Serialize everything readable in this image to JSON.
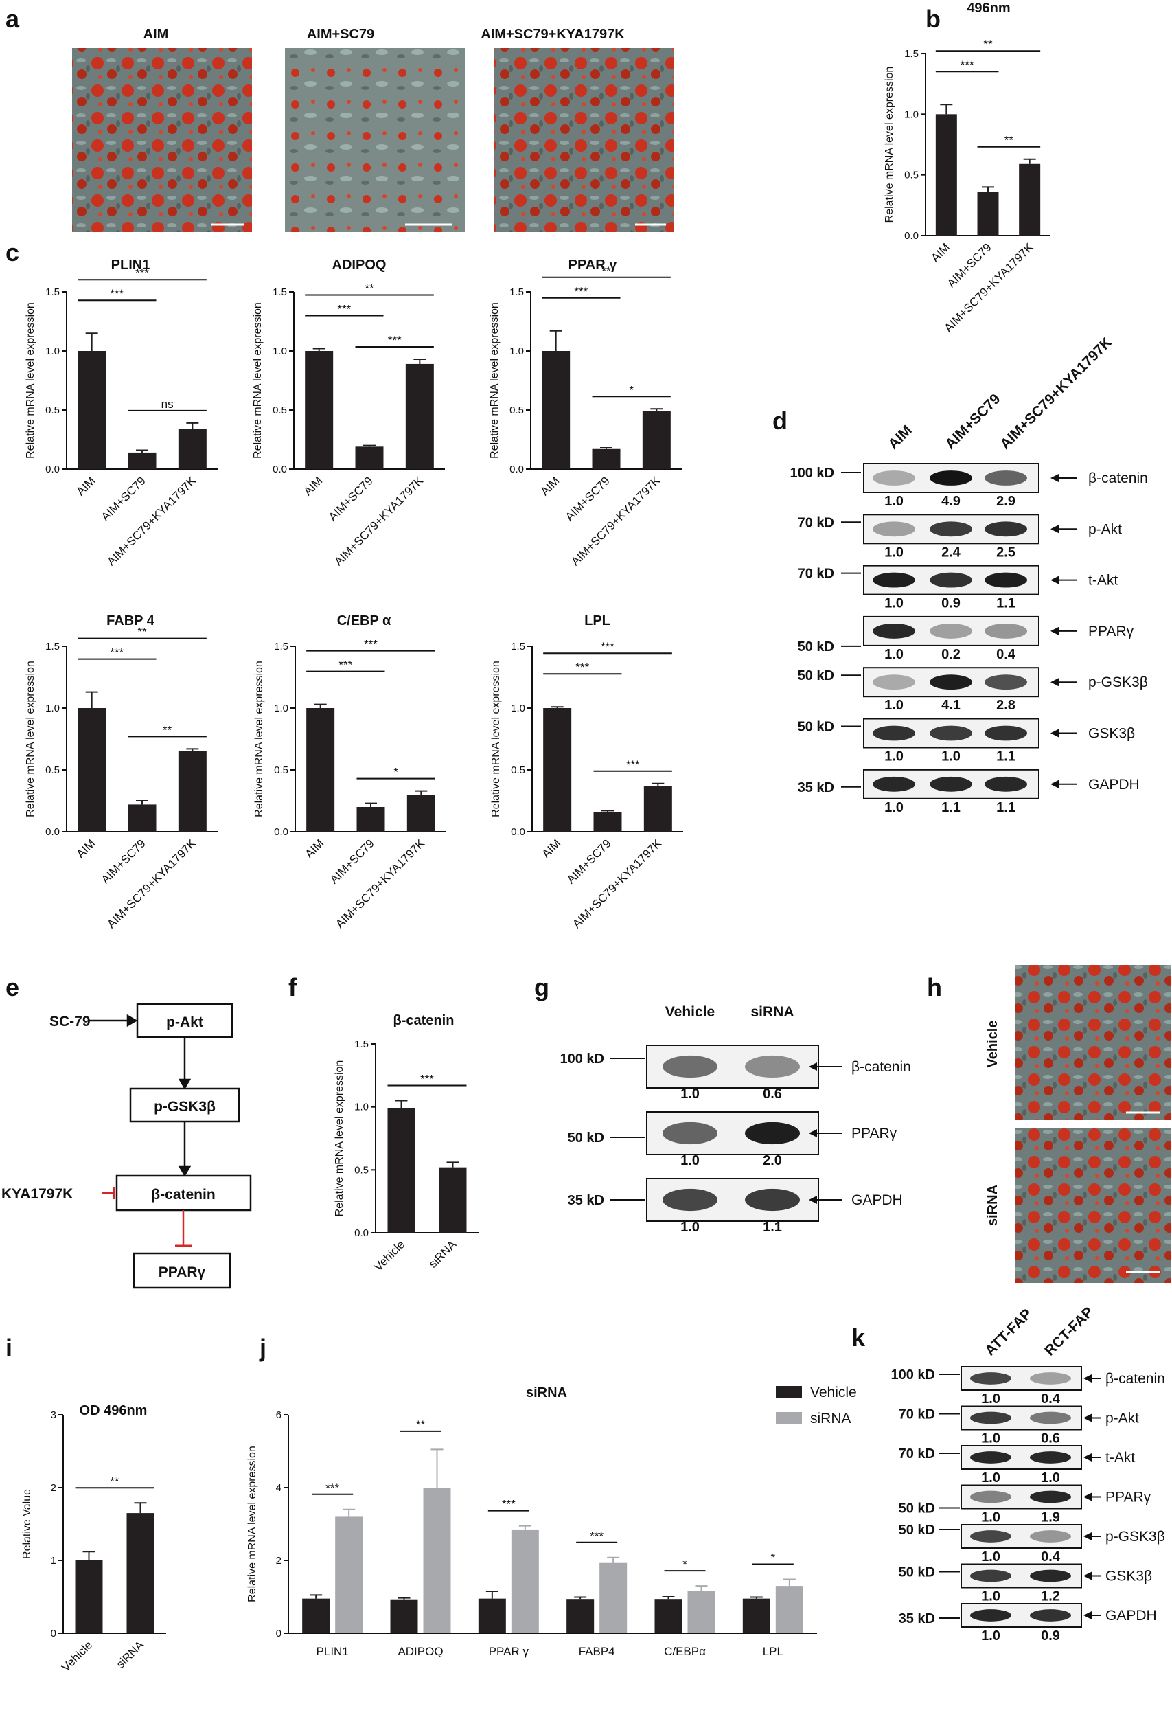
{
  "panel_labels": {
    "a": "a",
    "b": "b",
    "c": "c",
    "d": "d",
    "e": "e",
    "f": "f",
    "g": "g",
    "h": "h",
    "i": "i",
    "j": "j",
    "k": "k"
  },
  "panel_a": {
    "titles": [
      "AIM",
      "AIM+SC79",
      "AIM+SC79+KYA1797K"
    ],
    "image": "oil-red-o-stained-adipocyte-micrograph"
  },
  "panel_h": {
    "labels": [
      "Vehicle",
      "siRNA"
    ],
    "image": "oil-red-o-stained-adipocyte-micrograph"
  },
  "colors": {
    "bar_dark": "#231f20",
    "bar_gray": "#a7a9ac",
    "inhibit_red": "#d62728"
  },
  "panel_e": {
    "nodes": [
      "p-Akt",
      "p-GSK3β",
      "β-catenin",
      "PPARγ"
    ],
    "activator": "SC-79",
    "inhibitor": "KYA1797K"
  },
  "panel_d": {
    "columns": [
      "AIM",
      "AIM+SC79",
      "AIM+SC79+KYA1797K"
    ],
    "rows": [
      {
        "marker": "100 kD",
        "protein": "β-catenin",
        "quant": [
          "1.0",
          "4.9",
          "2.9"
        ],
        "intensity": [
          0.25,
          1.0,
          0.6
        ]
      },
      {
        "marker": "70 kD",
        "protein": "p-Akt",
        "quant": [
          "1.0",
          "2.4",
          "2.5"
        ],
        "intensity": [
          0.3,
          0.8,
          0.85
        ]
      },
      {
        "marker": "70 kD",
        "protein": "t-Akt",
        "quant": [
          "1.0",
          "0.9",
          "1.1"
        ],
        "intensity": [
          0.95,
          0.85,
          0.95
        ]
      },
      {
        "marker": "50 kD",
        "protein": "PPARγ",
        "quant": [
          "1.0",
          "0.2",
          "0.4"
        ],
        "intensity": [
          0.9,
          0.3,
          0.35
        ]
      },
      {
        "marker": "50 kD",
        "protein": "p-GSK3β",
        "quant": [
          "1.0",
          "4.1",
          "2.8"
        ],
        "intensity": [
          0.25,
          0.95,
          0.7
        ]
      },
      {
        "marker": "50 kD",
        "protein": "GSK3β",
        "quant": [
          "1.0",
          "1.0",
          "1.1"
        ],
        "intensity": [
          0.85,
          0.8,
          0.85
        ]
      },
      {
        "marker": "35 kD",
        "protein": "GAPDH",
        "quant": [
          "1.0",
          "1.1",
          "1.1"
        ],
        "intensity": [
          0.9,
          0.9,
          0.9
        ]
      }
    ]
  },
  "panel_g": {
    "columns": [
      "Vehicle",
      "siRNA"
    ],
    "rows": [
      {
        "marker": "100 kD",
        "protein": "β-catenin",
        "quant": [
          "1.0",
          "0.6"
        ],
        "intensity": [
          0.55,
          0.4
        ]
      },
      {
        "marker": "50 kD",
        "protein": "PPARγ",
        "quant": [
          "1.0",
          "2.0"
        ],
        "intensity": [
          0.6,
          0.95
        ]
      },
      {
        "marker": "35 kD",
        "protein": "GAPDH",
        "quant": [
          "1.0",
          "1.1"
        ],
        "intensity": [
          0.75,
          0.8
        ]
      }
    ]
  },
  "panel_k": {
    "columns": [
      "ATT-FAP",
      "RCT-FAP"
    ],
    "rows": [
      {
        "marker": "100 kD",
        "protein": "β-catenin",
        "quant": [
          "1.0",
          "0.4"
        ],
        "intensity": [
          0.75,
          0.3
        ]
      },
      {
        "marker": "70 kD",
        "protein": "p-Akt",
        "quant": [
          "1.0",
          "0.6"
        ],
        "intensity": [
          0.8,
          0.5
        ]
      },
      {
        "marker": "70 kD",
        "protein": "t-Akt",
        "quant": [
          "1.0",
          "1.0"
        ],
        "intensity": [
          0.9,
          0.9
        ]
      },
      {
        "marker": "50 kD",
        "protein": "PPARγ",
        "quant": [
          "1.0",
          "1.9"
        ],
        "intensity": [
          0.45,
          0.9
        ]
      },
      {
        "marker": "50 kD",
        "protein": "p-GSK3β",
        "quant": [
          "1.0",
          "0.4"
        ],
        "intensity": [
          0.75,
          0.35
        ]
      },
      {
        "marker": "50 kD",
        "protein": "GSK3β",
        "quant": [
          "1.0",
          "1.2"
        ],
        "intensity": [
          0.8,
          0.9
        ]
      },
      {
        "marker": "35 kD",
        "protein": "GAPDH",
        "quant": [
          "1.0",
          "0.9"
        ],
        "intensity": [
          0.9,
          0.85
        ]
      }
    ]
  },
  "chart_data": [
    {
      "id": "b",
      "type": "bar",
      "title": "496nm",
      "categories": [
        "AIM",
        "AIM+SC79",
        "AIM+SC79+KYA1797K"
      ],
      "values": [
        1.0,
        0.36,
        0.59
      ],
      "errors": [
        0.08,
        0.04,
        0.04
      ],
      "ylabel": "Relative mRNA level expression",
      "ylim": [
        0,
        1.5
      ],
      "yticks": [
        "0.0",
        "0.5",
        "1.0",
        "1.5"
      ],
      "significance": [
        {
          "from": 0,
          "to": 1,
          "label": "***"
        },
        {
          "from": 0,
          "to": 2,
          "label": "**"
        },
        {
          "from": 1,
          "to": 2,
          "label": "**"
        }
      ]
    },
    {
      "id": "c1",
      "type": "bar",
      "title": "PLIN1",
      "categories": [
        "AIM",
        "AIM+SC79",
        "AIM+SC79+KYA1797K"
      ],
      "values": [
        1.0,
        0.14,
        0.34
      ],
      "errors": [
        0.15,
        0.02,
        0.05
      ],
      "ylabel": "Relative mRNA level expression",
      "ylim": [
        0,
        1.5
      ],
      "yticks": [
        "0.0",
        "0.5",
        "1.0",
        "1.5"
      ],
      "significance": [
        {
          "from": 0,
          "to": 1,
          "label": "***"
        },
        {
          "from": 0,
          "to": 2,
          "label": "***"
        },
        {
          "from": 1,
          "to": 2,
          "label": "ns"
        }
      ]
    },
    {
      "id": "c2",
      "type": "bar",
      "title": "ADIPOQ",
      "categories": [
        "AIM",
        "AIM+SC79",
        "AIM+SC79+KYA1797K"
      ],
      "values": [
        1.0,
        0.19,
        0.89
      ],
      "errors": [
        0.02,
        0.01,
        0.04
      ],
      "ylabel": "Relative mRNA level expression",
      "ylim": [
        0,
        1.5
      ],
      "yticks": [
        "0.0",
        "0.5",
        "1.0",
        "1.5"
      ],
      "significance": [
        {
          "from": 0,
          "to": 1,
          "label": "***"
        },
        {
          "from": 0,
          "to": 2,
          "label": "**"
        },
        {
          "from": 1,
          "to": 2,
          "label": "***"
        }
      ]
    },
    {
      "id": "c3",
      "type": "bar",
      "title": "PPAR γ",
      "categories": [
        "AIM",
        "AIM+SC79",
        "AIM+SC79+KYA1797K"
      ],
      "values": [
        1.0,
        0.17,
        0.49
      ],
      "errors": [
        0.17,
        0.01,
        0.02
      ],
      "ylabel": "Relative mRNA level expression",
      "ylim": [
        0,
        1.5
      ],
      "yticks": [
        "0.0",
        "0.5",
        "1.0",
        "1.5"
      ],
      "significance": [
        {
          "from": 0,
          "to": 1,
          "label": "***"
        },
        {
          "from": 0,
          "to": 2,
          "label": "**"
        },
        {
          "from": 1,
          "to": 2,
          "label": "*"
        }
      ]
    },
    {
      "id": "c4",
      "type": "bar",
      "title": "FABP 4",
      "categories": [
        "AIM",
        "AIM+SC79",
        "AIM+SC79+KYA1797K"
      ],
      "values": [
        1.0,
        0.22,
        0.65
      ],
      "errors": [
        0.13,
        0.03,
        0.02
      ],
      "ylabel": "Relative mRNA level expression",
      "ylim": [
        0,
        1.5
      ],
      "yticks": [
        "0.0",
        "0.5",
        "1.0",
        "1.5"
      ],
      "significance": [
        {
          "from": 0,
          "to": 1,
          "label": "***"
        },
        {
          "from": 0,
          "to": 2,
          "label": "**"
        },
        {
          "from": 1,
          "to": 2,
          "label": "**"
        }
      ]
    },
    {
      "id": "c5",
      "type": "bar",
      "title": "C/EBP α",
      "categories": [
        "AIM",
        "AIM+SC79",
        "AIM+SC79+KYA1797K"
      ],
      "values": [
        1.0,
        0.2,
        0.3
      ],
      "errors": [
        0.03,
        0.03,
        0.03
      ],
      "ylabel": "Relative mRNA level expression",
      "ylim": [
        0,
        1.5
      ],
      "yticks": [
        "0.0",
        "0.5",
        "1.0",
        "1.5"
      ],
      "significance": [
        {
          "from": 0,
          "to": 1,
          "label": "***"
        },
        {
          "from": 0,
          "to": 2,
          "label": "***"
        },
        {
          "from": 1,
          "to": 2,
          "label": "*"
        }
      ]
    },
    {
      "id": "c6",
      "type": "bar",
      "title": "LPL",
      "categories": [
        "AIM",
        "AIM+SC79",
        "AIM+SC79+KYA1797K"
      ],
      "values": [
        1.0,
        0.16,
        0.37
      ],
      "errors": [
        0.01,
        0.01,
        0.02
      ],
      "ylabel": "Relative mRNA level expression",
      "ylim": [
        0,
        1.5
      ],
      "yticks": [
        "0.0",
        "0.5",
        "1.0",
        "1.5"
      ],
      "significance": [
        {
          "from": 0,
          "to": 1,
          "label": "***"
        },
        {
          "from": 0,
          "to": 2,
          "label": "***"
        },
        {
          "from": 1,
          "to": 2,
          "label": "***"
        }
      ]
    },
    {
      "id": "f",
      "type": "bar",
      "title": "β-catenin",
      "categories": [
        "Vehicle",
        "siRNA"
      ],
      "values": [
        0.99,
        0.52
      ],
      "errors": [
        0.06,
        0.04
      ],
      "ylabel": "Relative mRNA level expression",
      "ylim": [
        0,
        1.5
      ],
      "yticks": [
        "0.0",
        "0.5",
        "1.0",
        "1.5"
      ],
      "significance": [
        {
          "from": 0,
          "to": 1,
          "label": "***"
        }
      ]
    },
    {
      "id": "i",
      "type": "bar",
      "title": "OD 496nm",
      "categories": [
        "Vehicle",
        "siRNA"
      ],
      "values": [
        1.0,
        1.65
      ],
      "errors": [
        0.12,
        0.14
      ],
      "ylabel": "Relative Value",
      "ylim": [
        0,
        3
      ],
      "yticks": [
        "0",
        "1",
        "2",
        "3"
      ],
      "significance": [
        {
          "from": 0,
          "to": 1,
          "label": "**"
        }
      ]
    },
    {
      "id": "j",
      "type": "bar",
      "title": "siRNA",
      "categories": [
        "PLIN1",
        "ADIPOQ",
        "PPAR γ",
        "FABP4",
        "C/EBPα",
        "LPL"
      ],
      "ylabel": "Relative mRNA level expression",
      "ylim": [
        0,
        6
      ],
      "yticks": [
        "0",
        "2",
        "4",
        "6"
      ],
      "series": [
        {
          "name": "Vehicle",
          "values": [
            0.95,
            0.93,
            0.95,
            0.94,
            0.94,
            0.95
          ],
          "errors": [
            0.1,
            0.04,
            0.2,
            0.05,
            0.06,
            0.04
          ]
        },
        {
          "name": "siRNA",
          "values": [
            3.2,
            4.0,
            2.85,
            1.93,
            1.17,
            1.3
          ],
          "errors": [
            0.2,
            1.05,
            0.1,
            0.15,
            0.13,
            0.18
          ]
        }
      ],
      "significance": [
        "***",
        "**",
        "***",
        "***",
        "*",
        "*"
      ],
      "legend": "top-right"
    }
  ]
}
